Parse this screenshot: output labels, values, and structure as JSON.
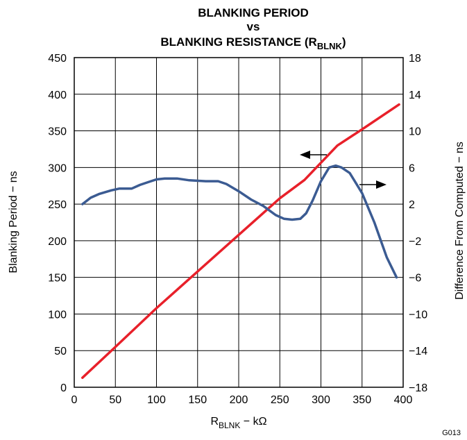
{
  "chart_data": {
    "type": "line",
    "title_lines": [
      "BLANKING PERIOD",
      "vs",
      "BLANKING RESISTANCE (R"
    ],
    "title_sub": "BLNK",
    "title_tail": ")",
    "xlabel_main": "R",
    "xlabel_sub": "BLNK",
    "xlabel_unit": " − kΩ",
    "ylabel_left": "Blanking Period − ns",
    "ylabel_right": "Difference From Computed − ns",
    "figure_id": "G013",
    "xlim": [
      0,
      400
    ],
    "ylim_left": [
      0,
      450
    ],
    "ylim_right": [
      -18,
      18
    ],
    "x_ticks": [
      "0",
      "50",
      "100",
      "150",
      "200",
      "250",
      "300",
      "350",
      "400"
    ],
    "y_left_ticks": [
      "0",
      "50",
      "100",
      "150",
      "200",
      "250",
      "300",
      "350",
      "400",
      "450"
    ],
    "y_right_ticks": [
      "−18",
      "−14",
      "−10",
      "−6",
      "−2",
      "2",
      "6",
      "10",
      "14",
      "18"
    ],
    "grid": true,
    "series": [
      {
        "axis": "left",
        "color": "#e8202a",
        "x": [
          10,
          50,
          100,
          150,
          200,
          250,
          280,
          320,
          350,
          395
        ],
        "y": [
          13,
          55,
          108,
          158,
          208,
          258,
          283,
          330,
          352,
          386
        ]
      },
      {
        "axis": "right",
        "color": "#3b5b92",
        "x": [
          10,
          20,
          30,
          45,
          55,
          70,
          80,
          90,
          100,
          110,
          125,
          140,
          160,
          175,
          185,
          200,
          215,
          230,
          245,
          255,
          265,
          275,
          282,
          290,
          300,
          310,
          318,
          325,
          335,
          350,
          365,
          380,
          392
        ],
        "y": [
          2.0,
          2.7,
          3.1,
          3.5,
          3.7,
          3.7,
          4.1,
          4.4,
          4.7,
          4.8,
          4.8,
          4.6,
          4.5,
          4.5,
          4.2,
          3.4,
          2.5,
          1.8,
          0.8,
          0.4,
          0.3,
          0.4,
          1.0,
          2.4,
          4.5,
          6.0,
          6.2,
          6.0,
          5.4,
          3.2,
          0.0,
          -3.8,
          -6.0
        ]
      }
    ]
  }
}
